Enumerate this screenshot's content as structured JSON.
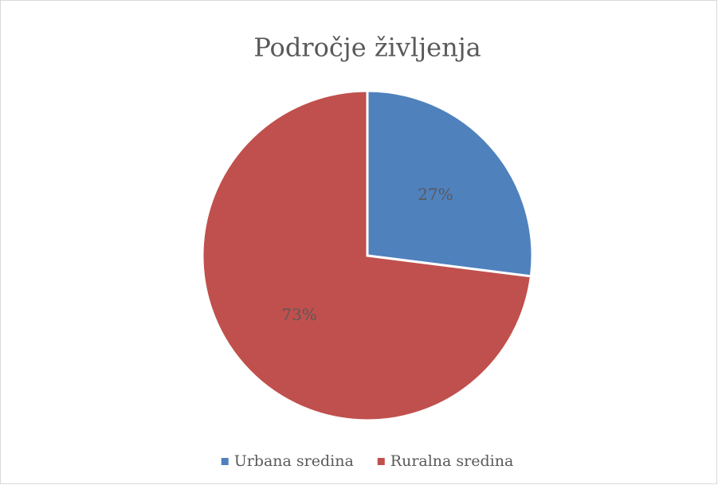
{
  "chart_data": {
    "type": "pie",
    "title": "Področje življenja",
    "categories": [
      "Urbana sredina",
      "Ruralna sredina"
    ],
    "values": [
      27,
      73
    ],
    "value_labels": [
      "27%",
      "73%"
    ],
    "colors": [
      "#4f81bd",
      "#c0504d"
    ],
    "legend": "bottom"
  }
}
